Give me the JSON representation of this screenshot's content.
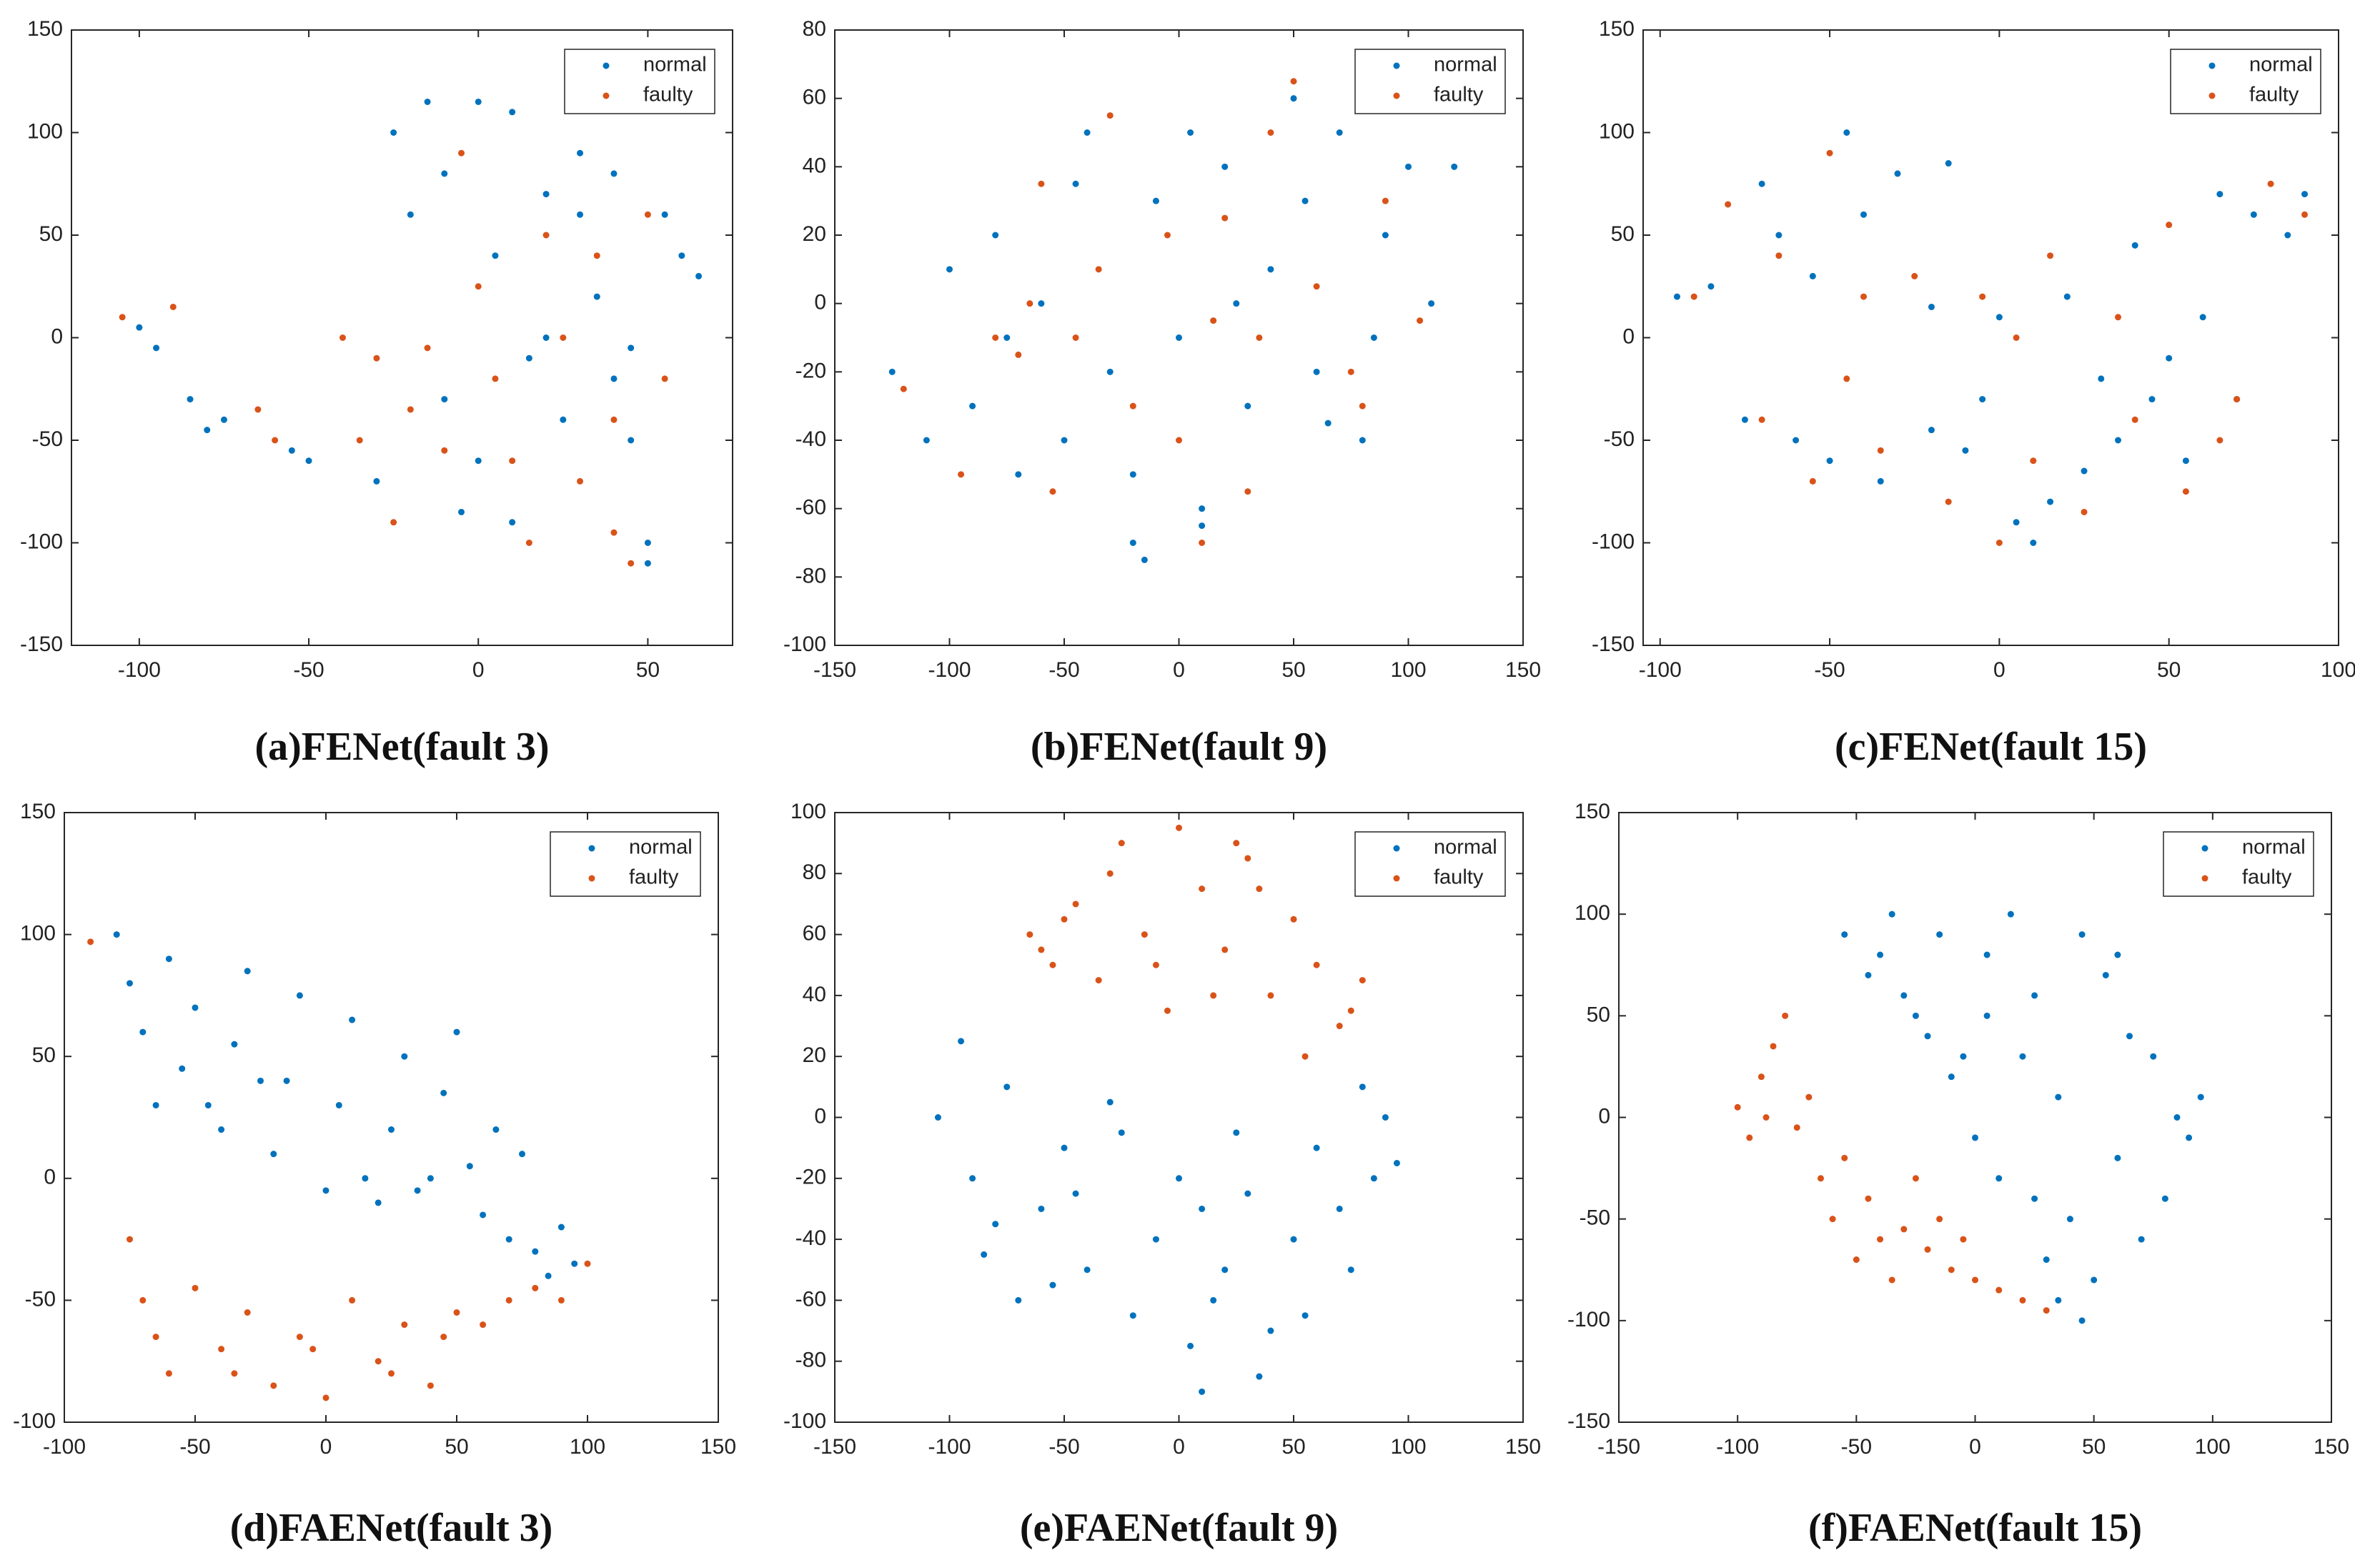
{
  "chart_data": [
    {
      "type": "scatter",
      "title": "(a)FENet(fault 3)",
      "xlim": [
        -120,
        75
      ],
      "ylim": [
        -150,
        150
      ],
      "xticks": [
        -100,
        -50,
        0,
        50
      ],
      "yticks": [
        -150,
        -100,
        -50,
        0,
        50,
        100,
        150
      ],
      "legend": "upper right",
      "series": [
        {
          "name": "normal",
          "color": "#0072BD",
          "x": [
            -100,
            -95,
            -85,
            -80,
            -75,
            -55,
            -50,
            -30,
            -20,
            -25,
            -15,
            -10,
            0,
            5,
            10,
            15,
            20,
            30,
            35,
            40,
            45,
            50,
            55,
            60,
            65,
            -5,
            10,
            25,
            40,
            -10,
            20,
            50,
            0,
            30,
            45
          ],
          "values": [
            5,
            -5,
            -30,
            -45,
            -40,
            -55,
            -60,
            -70,
            60,
            100,
            115,
            80,
            115,
            40,
            110,
            -10,
            70,
            90,
            20,
            80,
            -50,
            -110,
            60,
            40,
            30,
            -85,
            -90,
            -40,
            -20,
            -30,
            0,
            -100,
            -60,
            60,
            -5
          ]
        },
        {
          "name": "faulty",
          "color": "#D95319",
          "x": [
            -105,
            -90,
            -65,
            -60,
            -35,
            -30,
            -20,
            -10,
            -5,
            0,
            10,
            20,
            30,
            40,
            45,
            50,
            -15,
            5,
            25,
            40,
            35,
            -25,
            15,
            -40,
            55
          ],
          "values": [
            10,
            15,
            -35,
            -50,
            -50,
            -10,
            -35,
            -55,
            90,
            25,
            -60,
            50,
            -70,
            -95,
            -110,
            60,
            -5,
            -20,
            0,
            -40,
            40,
            -90,
            -100,
            0,
            -20
          ]
        }
      ]
    },
    {
      "type": "scatter",
      "title": "(b)FENet(fault 9)",
      "xlim": [
        -150,
        150
      ],
      "ylim": [
        -100,
        80
      ],
      "xticks": [
        -150,
        -100,
        -50,
        0,
        50,
        100,
        150
      ],
      "yticks": [
        -100,
        -80,
        -60,
        -40,
        -20,
        0,
        20,
        40,
        60,
        80
      ],
      "legend": "upper right",
      "series": [
        {
          "name": "normal",
          "color": "#0072BD",
          "x": [
            -125,
            -110,
            -100,
            -90,
            -80,
            -70,
            -60,
            -50,
            -40,
            -30,
            -20,
            -10,
            0,
            10,
            20,
            30,
            40,
            50,
            60,
            70,
            80,
            90,
            100,
            110,
            120,
            -15,
            10,
            -75,
            -45,
            25,
            55,
            85,
            -20,
            5,
            65
          ],
          "values": [
            -20,
            -40,
            10,
            -30,
            20,
            -50,
            0,
            -40,
            50,
            -20,
            -70,
            30,
            -10,
            -60,
            40,
            -30,
            10,
            60,
            -20,
            50,
            -40,
            20,
            40,
            0,
            40,
            -75,
            -65,
            -10,
            35,
            0,
            30,
            -10,
            -50,
            50,
            -35
          ]
        },
        {
          "name": "faulty",
          "color": "#D95319",
          "x": [
            -120,
            -95,
            -80,
            -65,
            -55,
            -45,
            -30,
            -20,
            -5,
            10,
            20,
            35,
            50,
            60,
            75,
            90,
            105,
            -60,
            -35,
            0,
            40,
            80,
            15,
            -70,
            30
          ],
          "values": [
            -25,
            -50,
            -10,
            0,
            -55,
            -10,
            55,
            -30,
            20,
            -70,
            25,
            -10,
            65,
            5,
            -20,
            30,
            -5,
            35,
            10,
            -40,
            50,
            -30,
            -5,
            -15,
            -55
          ]
        }
      ]
    },
    {
      "type": "scatter",
      "title": "(c)FENet(fault 15)",
      "xlim": [
        -105,
        100
      ],
      "ylim": [
        -150,
        150
      ],
      "xticks": [
        -100,
        -50,
        0,
        50,
        100
      ],
      "yticks": [
        -150,
        -100,
        -50,
        0,
        50,
        100,
        150
      ],
      "legend": "upper right",
      "series": [
        {
          "name": "normal",
          "color": "#0072BD",
          "x": [
            -95,
            -85,
            -70,
            -65,
            -55,
            -45,
            -40,
            -30,
            -20,
            -15,
            -75,
            -60,
            -50,
            -35,
            -20,
            -5,
            5,
            15,
            25,
            35,
            45,
            55,
            65,
            75,
            85,
            90,
            0,
            20,
            40,
            60,
            -10,
            10,
            30,
            50,
            70
          ],
          "values": [
            20,
            25,
            75,
            50,
            30,
            100,
            60,
            80,
            15,
            85,
            -40,
            -50,
            -60,
            -70,
            -45,
            -30,
            -90,
            -80,
            -65,
            -50,
            -30,
            -60,
            70,
            60,
            50,
            70,
            10,
            20,
            45,
            10,
            -55,
            -100,
            -20,
            -10,
            -30
          ]
        },
        {
          "name": "faulty",
          "color": "#D95319",
          "x": [
            -90,
            -80,
            -65,
            -50,
            -40,
            -25,
            -70,
            -55,
            -35,
            -15,
            0,
            10,
            25,
            40,
            55,
            70,
            80,
            90,
            -5,
            15,
            35,
            50,
            65,
            -45,
            5
          ],
          "values": [
            20,
            65,
            40,
            90,
            20,
            30,
            -40,
            -70,
            -55,
            -80,
            -100,
            -60,
            -85,
            -40,
            -75,
            -30,
            75,
            60,
            20,
            40,
            10,
            55,
            -50,
            -20,
            0
          ]
        }
      ]
    },
    {
      "type": "scatter",
      "title": "(d)FAENet(fault 3)",
      "xlim": [
        -100,
        150
      ],
      "ylim": [
        -100,
        150
      ],
      "xticks": [
        -100,
        -50,
        0,
        50,
        100,
        150
      ],
      "yticks": [
        -100,
        -50,
        0,
        50,
        100,
        150
      ],
      "legend": "upper right",
      "series": [
        {
          "name": "normal",
          "color": "#0072BD",
          "x": [
            -80,
            -75,
            -70,
            -60,
            -55,
            -50,
            -40,
            -35,
            -30,
            -20,
            -15,
            -10,
            0,
            5,
            10,
            20,
            25,
            30,
            40,
            45,
            50,
            60,
            70,
            75,
            80,
            85,
            90,
            95,
            -65,
            -45,
            -25,
            15,
            35,
            55,
            65
          ],
          "values": [
            100,
            80,
            60,
            90,
            45,
            70,
            20,
            55,
            85,
            10,
            40,
            75,
            -5,
            30,
            65,
            -10,
            20,
            50,
            0,
            35,
            60,
            -15,
            -25,
            10,
            -30,
            -40,
            -20,
            -35,
            30,
            30,
            40,
            0,
            -5,
            5,
            20
          ]
        },
        {
          "name": "faulty",
          "color": "#D95319",
          "x": [
            -90,
            -75,
            -70,
            -60,
            -50,
            -40,
            -30,
            -20,
            -10,
            0,
            10,
            20,
            30,
            40,
            50,
            60,
            70,
            80,
            90,
            100,
            -65,
            -35,
            -5,
            25,
            45
          ],
          "values": [
            97,
            -25,
            -50,
            -80,
            -45,
            -70,
            -55,
            -85,
            -65,
            -90,
            -50,
            -75,
            -60,
            -85,
            -55,
            -60,
            -50,
            -45,
            -50,
            -35,
            -65,
            -80,
            -70,
            -80,
            -65
          ]
        }
      ]
    },
    {
      "type": "scatter",
      "title": "(e)FAENet(fault 9)",
      "xlim": [
        -150,
        150
      ],
      "ylim": [
        -100,
        100
      ],
      "xticks": [
        -150,
        -100,
        -50,
        0,
        50,
        100,
        150
      ],
      "yticks": [
        -100,
        -80,
        -60,
        -40,
        -20,
        0,
        20,
        40,
        60,
        80,
        100
      ],
      "legend": "upper right",
      "series": [
        {
          "name": "normal",
          "color": "#0072BD",
          "x": [
            -105,
            -95,
            -90,
            -85,
            -75,
            -70,
            -60,
            -50,
            -40,
            -30,
            -20,
            -10,
            0,
            5,
            10,
            20,
            30,
            40,
            50,
            60,
            70,
            80,
            90,
            95,
            -80,
            -55,
            -25,
            15,
            35,
            55,
            75,
            25,
            -45,
            85,
            10
          ],
          "values": [
            0,
            25,
            -20,
            -45,
            10,
            -60,
            -30,
            -10,
            -50,
            5,
            -65,
            -40,
            -20,
            -75,
            -90,
            -50,
            -25,
            -70,
            -40,
            -10,
            -30,
            10,
            0,
            -15,
            -35,
            -55,
            -5,
            -60,
            -85,
            -65,
            -50,
            -5,
            -25,
            -20,
            -30
          ]
        },
        {
          "name": "faulty",
          "color": "#D95319",
          "x": [
            -65,
            -55,
            -45,
            -35,
            -25,
            -15,
            -5,
            0,
            10,
            20,
            30,
            40,
            50,
            60,
            70,
            80,
            -50,
            -30,
            -10,
            15,
            35,
            55,
            -60,
            25,
            75
          ],
          "values": [
            60,
            50,
            70,
            45,
            90,
            60,
            35,
            95,
            75,
            55,
            85,
            40,
            65,
            50,
            30,
            45,
            65,
            80,
            50,
            40,
            75,
            20,
            55,
            90,
            35
          ]
        }
      ]
    },
    {
      "type": "scatter",
      "title": "(f)FAENet(fault 15)",
      "xlim": [
        -150,
        150
      ],
      "ylim": [
        -150,
        150
      ],
      "xticks": [
        -150,
        -100,
        -50,
        0,
        50,
        100,
        150
      ],
      "yticks": [
        -150,
        -100,
        -50,
        0,
        50,
        100,
        150
      ],
      "legend": "upper right",
      "series": [
        {
          "name": "normal",
          "color": "#0072BD",
          "x": [
            -55,
            -45,
            -35,
            -25,
            -15,
            -5,
            5,
            15,
            25,
            35,
            45,
            55,
            65,
            75,
            85,
            95,
            -40,
            -20,
            0,
            20,
            40,
            60,
            80,
            -30,
            -10,
            10,
            30,
            50,
            70,
            90,
            45,
            35,
            60,
            25,
            5
          ],
          "values": [
            90,
            70,
            100,
            50,
            90,
            30,
            80,
            100,
            60,
            10,
            90,
            70,
            40,
            30,
            0,
            10,
            80,
            40,
            -10,
            30,
            -50,
            -20,
            -40,
            60,
            20,
            -30,
            -70,
            -80,
            -60,
            -10,
            -100,
            -90,
            80,
            -40,
            50
          ]
        },
        {
          "name": "faulty",
          "color": "#D95319",
          "x": [
            -100,
            -95,
            -90,
            -85,
            -80,
            -75,
            -70,
            -65,
            -60,
            -55,
            -50,
            -45,
            -40,
            -35,
            -30,
            -25,
            -20,
            -15,
            -10,
            -5,
            0,
            10,
            20,
            30,
            -88
          ],
          "values": [
            5,
            -10,
            20,
            35,
            50,
            -5,
            10,
            -30,
            -50,
            -20,
            -70,
            -40,
            -60,
            -80,
            -55,
            -30,
            -65,
            -50,
            -75,
            -60,
            -80,
            -85,
            -90,
            -95,
            0
          ]
        }
      ]
    }
  ]
}
